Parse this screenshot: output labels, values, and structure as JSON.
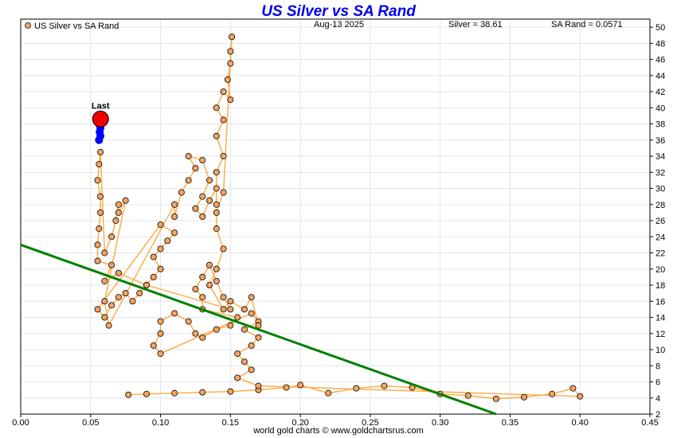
{
  "chart_data": {
    "type": "scatter",
    "title": "US Silver vs SA Rand",
    "legend_label": "US Silver vs SA Rand",
    "date_label": "Aug-13  2025",
    "silver_readout": "Silver = 38.61",
    "rand_readout": "SA Rand = 0.0571",
    "footer": "world gold charts © www.goldchartsrus.com",
    "last_label": "Last",
    "xlim": [
      0,
      0.45
    ],
    "ylim": [
      2,
      51
    ],
    "x_ticks": [
      "0.00",
      "0.05",
      "0.10",
      "0.15",
      "0.20",
      "0.25",
      "0.30",
      "0.35",
      "0.40",
      "0.45"
    ],
    "y_ticks": [
      "2",
      "4",
      "6",
      "8",
      "10",
      "12",
      "14",
      "16",
      "18",
      "20",
      "22",
      "24",
      "26",
      "28",
      "30",
      "32",
      "34",
      "36",
      "38",
      "40",
      "42",
      "44",
      "46",
      "48",
      "50"
    ],
    "grid": true,
    "legend_position": "top-left",
    "colors": {
      "title": "#0000ee",
      "marker_fill": "#f4a460",
      "marker_edge": "#000000",
      "line": "#ff8c00",
      "trend": "#008000",
      "recent": "#0000ff",
      "last": "#ee0000",
      "grid": "#dfe6f0"
    },
    "series": [
      {
        "name": "US Silver vs SA Rand",
        "points": [
          [
            0.077,
            4.4
          ],
          [
            0.09,
            4.5
          ],
          [
            0.11,
            4.6
          ],
          [
            0.13,
            4.7
          ],
          [
            0.15,
            4.8
          ],
          [
            0.17,
            5.0
          ],
          [
            0.19,
            5.3
          ],
          [
            0.2,
            5.6
          ],
          [
            0.22,
            4.6
          ],
          [
            0.24,
            5.2
          ],
          [
            0.26,
            5.5
          ],
          [
            0.28,
            5.3
          ],
          [
            0.3,
            4.5
          ],
          [
            0.32,
            4.3
          ],
          [
            0.34,
            3.9
          ],
          [
            0.36,
            4.1
          ],
          [
            0.38,
            4.5
          ],
          [
            0.395,
            5.2
          ],
          [
            0.4,
            4.2
          ],
          [
            0.17,
            5.5
          ],
          [
            0.155,
            6.5
          ],
          [
            0.165,
            7.5
          ],
          [
            0.16,
            8.5
          ],
          [
            0.155,
            9.5
          ],
          [
            0.165,
            10.5
          ],
          [
            0.17,
            11.5
          ],
          [
            0.16,
            12.5
          ],
          [
            0.17,
            13.5
          ],
          [
            0.165,
            14.5
          ],
          [
            0.1,
            9.5
          ],
          [
            0.095,
            10.5
          ],
          [
            0.1,
            12.0
          ],
          [
            0.1,
            13.5
          ],
          [
            0.11,
            14.5
          ],
          [
            0.12,
            13.5
          ],
          [
            0.125,
            12.0
          ],
          [
            0.13,
            11.5
          ],
          [
            0.14,
            12.5
          ],
          [
            0.15,
            13.0
          ],
          [
            0.155,
            14.0
          ],
          [
            0.13,
            15.0
          ],
          [
            0.13,
            16.5
          ],
          [
            0.125,
            17.5
          ],
          [
            0.13,
            19.0
          ],
          [
            0.135,
            20.5
          ],
          [
            0.14,
            18.5
          ],
          [
            0.145,
            16.5
          ],
          [
            0.15,
            15.0
          ],
          [
            0.09,
            18.0
          ],
          [
            0.095,
            19.0
          ],
          [
            0.1,
            20.0
          ],
          [
            0.095,
            21.5
          ],
          [
            0.1,
            22.5
          ],
          [
            0.105,
            23.5
          ],
          [
            0.11,
            24.5
          ],
          [
            0.1,
            25.5
          ],
          [
            0.055,
            15.0
          ],
          [
            0.06,
            14.0
          ],
          [
            0.065,
            15.5
          ],
          [
            0.07,
            16.5
          ],
          [
            0.075,
            17.0
          ],
          [
            0.08,
            16.0
          ],
          [
            0.085,
            17.0
          ],
          [
            0.09,
            18.0
          ],
          [
            0.07,
            19.5
          ],
          [
            0.06,
            18.5
          ],
          [
            0.065,
            20.5
          ],
          [
            0.055,
            21.0
          ],
          [
            0.055,
            23.0
          ],
          [
            0.056,
            25.0
          ],
          [
            0.057,
            27.0
          ],
          [
            0.057,
            29.0
          ],
          [
            0.055,
            31.0
          ],
          [
            0.056,
            33.0
          ],
          [
            0.057,
            34.5
          ],
          [
            0.06,
            22.0
          ],
          [
            0.065,
            24.0
          ],
          [
            0.068,
            26.0
          ],
          [
            0.07,
            28.0
          ],
          [
            0.07,
            27.0
          ],
          [
            0.075,
            28.5
          ],
          [
            0.06,
            16.0
          ],
          [
            0.063,
            13.0
          ],
          [
            0.11,
            28.0
          ],
          [
            0.11,
            26.5
          ],
          [
            0.115,
            29.5
          ],
          [
            0.12,
            31.0
          ],
          [
            0.125,
            32.5
          ],
          [
            0.12,
            34.0
          ],
          [
            0.13,
            33.5
          ],
          [
            0.135,
            31.0
          ],
          [
            0.13,
            29.0
          ],
          [
            0.125,
            27.5
          ],
          [
            0.13,
            26.5
          ],
          [
            0.135,
            28.5
          ],
          [
            0.14,
            30.0
          ],
          [
            0.14,
            28.0
          ],
          [
            0.14,
            32.0
          ],
          [
            0.145,
            34.0
          ],
          [
            0.14,
            36.5
          ],
          [
            0.145,
            38.5
          ],
          [
            0.14,
            40.0
          ],
          [
            0.145,
            42.0
          ],
          [
            0.15,
            41.0
          ],
          [
            0.148,
            43.5
          ],
          [
            0.15,
            45.5
          ],
          [
            0.15,
            47.0
          ],
          [
            0.151,
            48.8
          ],
          [
            0.145,
            29.5
          ],
          [
            0.14,
            27.0
          ],
          [
            0.14,
            25.0
          ],
          [
            0.145,
            22.5
          ],
          [
            0.14,
            20.0
          ],
          [
            0.135,
            18.0
          ],
          [
            0.145,
            15.0
          ],
          [
            0.15,
            16.0
          ],
          [
            0.16,
            15.0
          ],
          [
            0.165,
            16.5
          ],
          [
            0.17,
            13.0
          ]
        ]
      }
    ],
    "trend_line": {
      "x": [
        0,
        0.34
      ],
      "y": [
        23.0,
        2.0
      ]
    },
    "recent_points": [
      [
        0.056,
        36.0
      ],
      [
        0.057,
        36.5
      ],
      [
        0.0565,
        37.0
      ],
      [
        0.057,
        37.5
      ],
      [
        0.056,
        38.0
      ]
    ],
    "last_point": [
      0.0571,
      38.61
    ]
  }
}
